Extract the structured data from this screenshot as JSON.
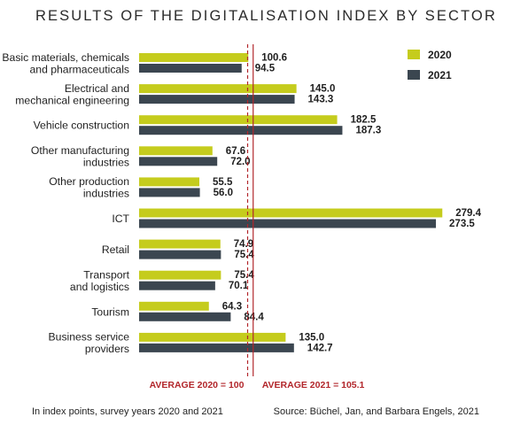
{
  "chart_data": {
    "type": "bar",
    "orientation": "horizontal",
    "title": "RESULTS OF THE DIGITALISATION INDEX BY SECTOR",
    "categories": [
      [
        "Basic materials, chemicals",
        "and pharmaceuticals"
      ],
      [
        "Electrical and",
        "mechanical engineering"
      ],
      [
        "Vehicle construction"
      ],
      [
        "Other manufacturing",
        "industries"
      ],
      [
        "Other production",
        "industries"
      ],
      [
        "ICT"
      ],
      [
        "Retail"
      ],
      [
        "Transport",
        "and logistics"
      ],
      [
        "Tourism"
      ],
      [
        "Business service",
        "providers"
      ]
    ],
    "series": [
      {
        "name": "2020",
        "color": "#c5cc1d",
        "values": [
          100.6,
          145.0,
          182.5,
          67.6,
          55.5,
          279.4,
          74.9,
          75.4,
          64.3,
          135.0
        ],
        "labels": [
          "100.6",
          "145.0",
          "182.5",
          "67.6",
          "55.5",
          "279.4",
          "74.9",
          "75.4",
          "64.3",
          "135.0"
        ]
      },
      {
        "name": "2021",
        "color": "#3b4650",
        "values": [
          94.5,
          143.3,
          187.3,
          72.0,
          56.0,
          273.5,
          75.4,
          70.1,
          84.4,
          142.7
        ],
        "labels": [
          "94.5",
          "143.3",
          "187.3",
          "72.0",
          "56.0",
          "273.5",
          "75.4",
          "70.1",
          "84.4",
          "142.7"
        ]
      }
    ],
    "reference_lines": [
      {
        "value": 100,
        "label": "AVERAGE 2020 = 100",
        "style": "dashed",
        "color": "#b2262b"
      },
      {
        "value": 105.1,
        "label": "AVERAGE 2021 = 105.1",
        "style": "solid",
        "color": "#b2262b"
      }
    ],
    "xlim": [
      0,
      280
    ],
    "legend_position": "top-right",
    "grid": false,
    "xlabel": "",
    "ylabel": ""
  },
  "footnote": "In index points, survey years 2020 and 2021",
  "source": "Source: Büchel, Jan, and Barbara Engels, 2021"
}
